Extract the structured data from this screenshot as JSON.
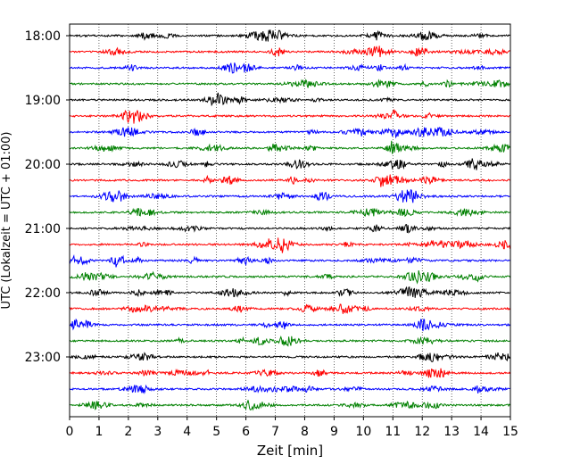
{
  "chart_data": {
    "type": "line",
    "title": "",
    "xlabel": "Zeit  [min]",
    "ylabel": "UTC (Lokalzeit = UTC + 01:00)",
    "xlim": [
      0,
      15
    ],
    "x_ticks": [
      "0",
      "1",
      "2",
      "3",
      "4",
      "5",
      "6",
      "7",
      "8",
      "9",
      "10",
      "11",
      "12",
      "13",
      "14",
      "15"
    ],
    "y_ticks": [
      "18:00",
      "19:00",
      "20:00",
      "21:00",
      "22:00",
      "23:00"
    ],
    "trace_interval_min": 15,
    "grid": "vertical dotted at each minute",
    "series_colors": [
      "#000000",
      "#ff0000",
      "#0000ff",
      "#008000"
    ],
    "traces": [
      {
        "start": "18:00",
        "color": "#000000"
      },
      {
        "start": "18:15",
        "color": "#ff0000"
      },
      {
        "start": "18:30",
        "color": "#0000ff"
      },
      {
        "start": "18:45",
        "color": "#008000"
      },
      {
        "start": "19:00",
        "color": "#000000"
      },
      {
        "start": "19:15",
        "color": "#ff0000"
      },
      {
        "start": "19:30",
        "color": "#0000ff"
      },
      {
        "start": "19:45",
        "color": "#008000"
      },
      {
        "start": "20:00",
        "color": "#000000"
      },
      {
        "start": "20:15",
        "color": "#ff0000"
      },
      {
        "start": "20:30",
        "color": "#0000ff"
      },
      {
        "start": "20:45",
        "color": "#008000"
      },
      {
        "start": "21:00",
        "color": "#000000"
      },
      {
        "start": "21:15",
        "color": "#ff0000"
      },
      {
        "start": "21:30",
        "color": "#0000ff"
      },
      {
        "start": "21:45",
        "color": "#008000"
      },
      {
        "start": "22:00",
        "color": "#000000"
      },
      {
        "start": "22:15",
        "color": "#ff0000"
      },
      {
        "start": "22:30",
        "color": "#0000ff"
      },
      {
        "start": "22:45",
        "color": "#008000"
      },
      {
        "start": "23:00",
        "color": "#000000"
      },
      {
        "start": "23:15",
        "color": "#ff0000"
      },
      {
        "start": "23:30",
        "color": "#0000ff"
      },
      {
        "start": "23:45",
        "color": "#008000"
      }
    ]
  }
}
